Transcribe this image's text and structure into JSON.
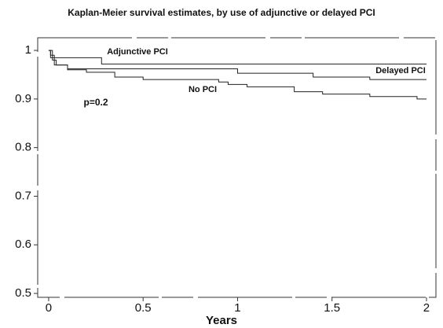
{
  "chart_data": {
    "type": "step",
    "title": "Kaplan-Meier survival estimates, by use of adjunctive or delayed PCI",
    "x_label": "Years",
    "annotation": "p=0.2",
    "xlim": [
      -0.058,
      2.05
    ],
    "ylim": [
      0.492,
      1.026
    ],
    "xticks": [
      0,
      0.5,
      1,
      1.5,
      2
    ],
    "yticks": [
      0.5,
      0.6,
      0.7,
      0.8,
      0.9,
      1
    ],
    "series": [
      {
        "name": "Adjunctive PCI",
        "color": "#222222",
        "x": [
          0,
          0.01,
          0.03,
          0.28,
          2
        ],
        "values": [
          1,
          0.99,
          0.985,
          0.972,
          0.972
        ]
      },
      {
        "name": "Delayed PCI",
        "color": "#222222",
        "x": [
          0,
          0.02,
          0.04,
          0.1,
          1.0,
          1.4,
          1.7,
          2
        ],
        "values": [
          1,
          0.98,
          0.97,
          0.962,
          0.953,
          0.945,
          0.94,
          0.94
        ]
      },
      {
        "name": "No PCI",
        "color": "#222222",
        "x": [
          0,
          0.01,
          0.03,
          0.1,
          0.2,
          0.35,
          0.5,
          0.9,
          0.95,
          1.05,
          1.3,
          1.45,
          1.7,
          1.95,
          2
        ],
        "values": [
          1,
          0.985,
          0.97,
          0.96,
          0.955,
          0.945,
          0.94,
          0.935,
          0.93,
          0.925,
          0.915,
          0.91,
          0.905,
          0.9,
          0.9
        ]
      }
    ]
  }
}
